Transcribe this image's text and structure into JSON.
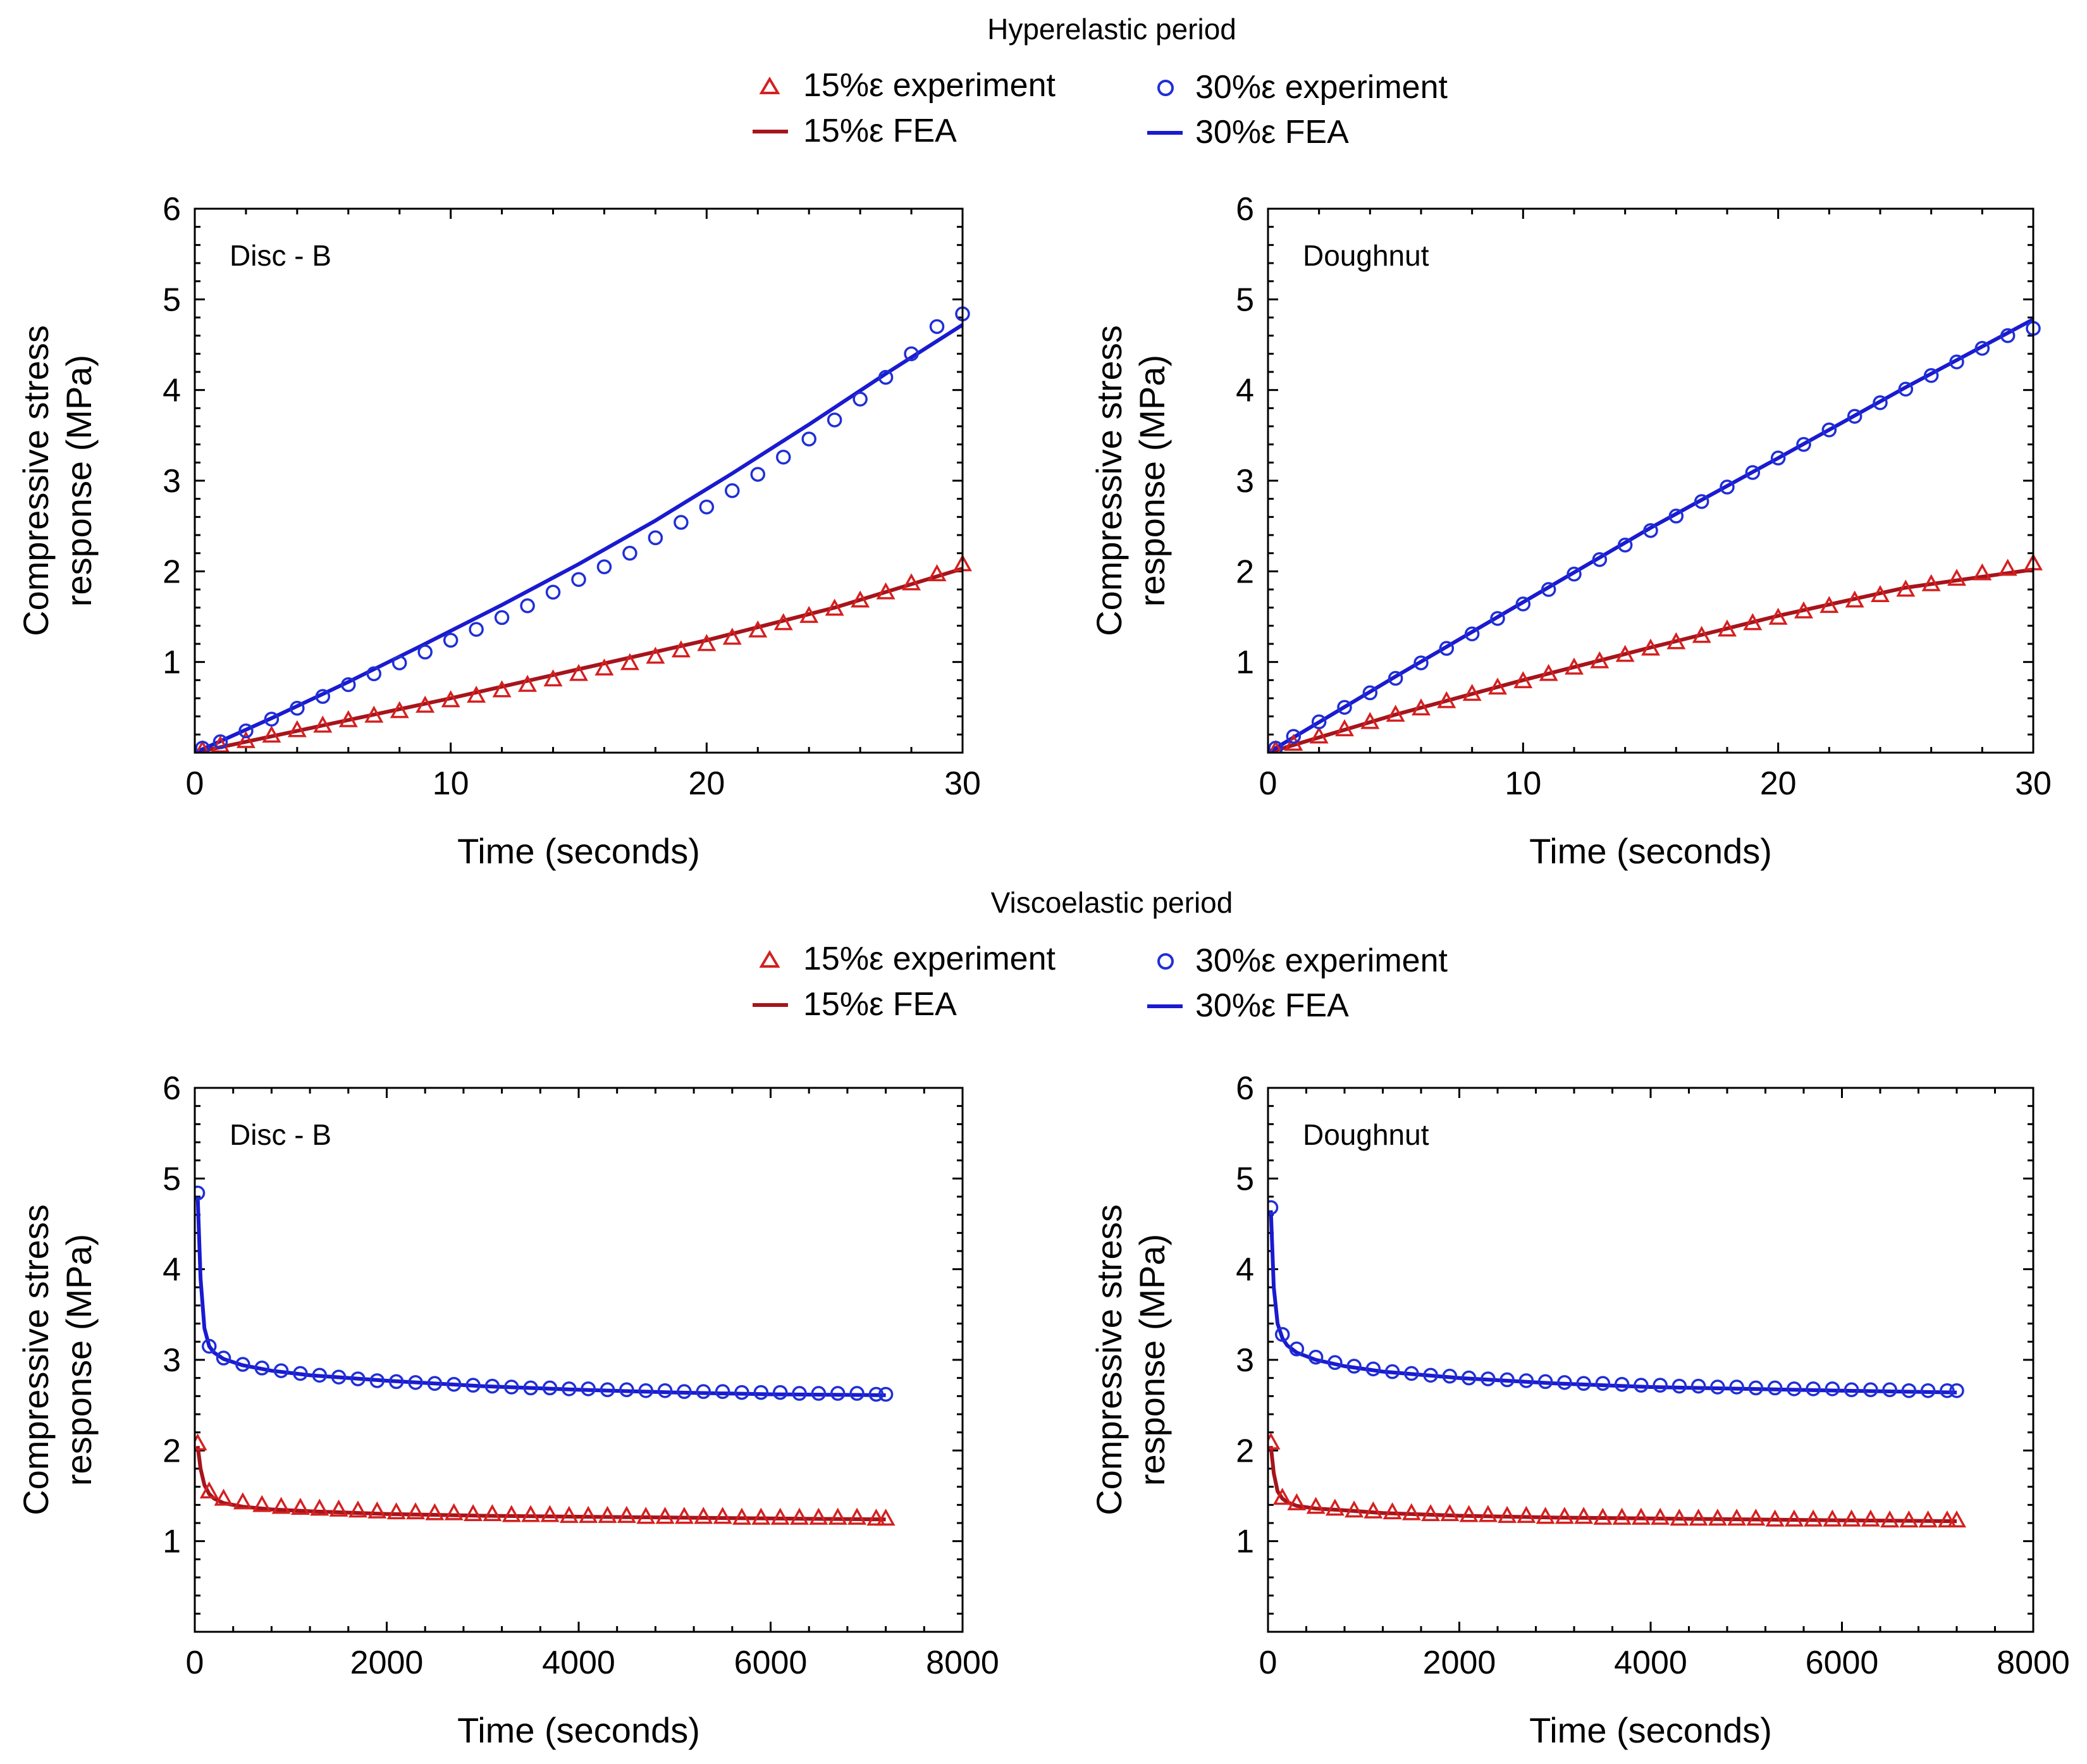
{
  "sections": [
    {
      "title": "Hyperelastic period",
      "legend": [
        {
          "label": "15%ε experiment",
          "marker": "triangle",
          "color": "#d42020"
        },
        {
          "label": "30%ε experiment",
          "marker": "circle",
          "color": "#1f2fd6"
        },
        {
          "label": "15%ε FEA",
          "marker": "line",
          "color": "#a6141c"
        },
        {
          "label": "30%ε FEA",
          "marker": "line",
          "color": "#1a1ad0"
        }
      ]
    },
    {
      "title": "Viscoelastic period",
      "legend": [
        {
          "label": "15%ε experiment",
          "marker": "triangle",
          "color": "#d42020"
        },
        {
          "label": "30%ε experiment",
          "marker": "circle",
          "color": "#1f2fd6"
        },
        {
          "label": "15%ε FEA",
          "marker": "line",
          "color": "#a6141c"
        },
        {
          "label": "30%ε FEA",
          "marker": "line",
          "color": "#1a1ad0"
        }
      ]
    }
  ],
  "chart_data": [
    {
      "type": "scatter+line",
      "section": 0,
      "annotation": "Disc - B",
      "xlabel": "Time (seconds)",
      "ylabel": [
        "Compressive stress",
        "response (MPa)"
      ],
      "xlim": [
        0,
        30
      ],
      "ylim": [
        0,
        6
      ],
      "xticks": [
        0,
        10,
        20,
        30
      ],
      "yticks": [
        1,
        2,
        3,
        4,
        5,
        6
      ],
      "series": [
        {
          "name": "15%ε experiment",
          "kind": "triangle",
          "color": "#d42020",
          "x": [
            0.3,
            1,
            2,
            3,
            4,
            5,
            6,
            7,
            8,
            9,
            10,
            11,
            12,
            13,
            14,
            15,
            16,
            17,
            18,
            19,
            20,
            21,
            22,
            23,
            24,
            25,
            26,
            27,
            28,
            29,
            30
          ],
          "y": [
            0.03,
            0.08,
            0.13,
            0.19,
            0.25,
            0.3,
            0.36,
            0.41,
            0.46,
            0.52,
            0.58,
            0.63,
            0.69,
            0.75,
            0.81,
            0.87,
            0.93,
            0.99,
            1.06,
            1.13,
            1.2,
            1.27,
            1.35,
            1.43,
            1.51,
            1.59,
            1.68,
            1.77,
            1.87,
            1.97,
            2.08
          ]
        },
        {
          "name": "30%ε experiment",
          "kind": "circle",
          "color": "#1f2fd6",
          "x": [
            0.3,
            1,
            2,
            3,
            4,
            5,
            6,
            7,
            8,
            9,
            10,
            11,
            12,
            13,
            14,
            15,
            16,
            17,
            18,
            19,
            20,
            21,
            22,
            23,
            24,
            25,
            26,
            27,
            28,
            29,
            30
          ],
          "y": [
            0.05,
            0.12,
            0.24,
            0.37,
            0.49,
            0.62,
            0.75,
            0.87,
            0.99,
            1.11,
            1.24,
            1.36,
            1.49,
            1.62,
            1.77,
            1.91,
            2.05,
            2.2,
            2.37,
            2.54,
            2.71,
            2.89,
            3.07,
            3.26,
            3.46,
            3.67,
            3.9,
            4.14,
            4.4,
            4.7,
            4.84
          ]
        },
        {
          "name": "15%ε FEA",
          "kind": "line",
          "color": "#a6141c",
          "x": [
            0,
            5,
            10,
            15,
            20,
            25,
            30
          ],
          "y": [
            0,
            0.3,
            0.6,
            0.92,
            1.24,
            1.6,
            2.03
          ]
        },
        {
          "name": "30%ε FEA",
          "kind": "line",
          "color": "#1a1ad0",
          "x": [
            0,
            3,
            6,
            9,
            12,
            15,
            18,
            21,
            24,
            27,
            29,
            30
          ],
          "y": [
            0,
            0.38,
            0.78,
            1.2,
            1.63,
            2.08,
            2.56,
            3.08,
            3.62,
            4.18,
            4.54,
            4.72
          ]
        }
      ]
    },
    {
      "type": "scatter+line",
      "section": 0,
      "annotation": "Doughnut",
      "xlabel": "Time (seconds)",
      "ylabel": [
        "Compressive stress",
        "response (MPa)"
      ],
      "xlim": [
        0,
        30
      ],
      "ylim": [
        0,
        6
      ],
      "xticks": [
        0,
        10,
        20,
        30
      ],
      "yticks": [
        1,
        2,
        3,
        4,
        5,
        6
      ],
      "series": [
        {
          "name": "15%ε experiment",
          "kind": "triangle",
          "color": "#d42020",
          "x": [
            0.3,
            1,
            2,
            3,
            4,
            5,
            6,
            7,
            8,
            9,
            10,
            11,
            12,
            13,
            14,
            15,
            16,
            17,
            18,
            19,
            20,
            21,
            22,
            23,
            24,
            25,
            26,
            27,
            28,
            29,
            30
          ],
          "y": [
            0.03,
            0.1,
            0.18,
            0.26,
            0.34,
            0.42,
            0.49,
            0.57,
            0.65,
            0.72,
            0.79,
            0.87,
            0.94,
            1.01,
            1.08,
            1.15,
            1.22,
            1.29,
            1.36,
            1.43,
            1.49,
            1.56,
            1.62,
            1.68,
            1.74,
            1.8,
            1.86,
            1.92,
            1.98,
            2.03,
            2.09
          ]
        },
        {
          "name": "30%ε experiment",
          "kind": "circle",
          "color": "#1f2fd6",
          "x": [
            0.3,
            1,
            2,
            3,
            4,
            5,
            6,
            7,
            8,
            9,
            10,
            11,
            12,
            13,
            14,
            15,
            16,
            17,
            18,
            19,
            20,
            21,
            22,
            23,
            24,
            25,
            26,
            27,
            28,
            29,
            30
          ],
          "y": [
            0.05,
            0.18,
            0.34,
            0.5,
            0.66,
            0.82,
            0.99,
            1.15,
            1.31,
            1.48,
            1.64,
            1.8,
            1.97,
            2.13,
            2.29,
            2.45,
            2.61,
            2.77,
            2.93,
            3.09,
            3.25,
            3.4,
            3.56,
            3.71,
            3.86,
            4.01,
            4.16,
            4.31,
            4.46,
            4.6,
            4.68
          ]
        },
        {
          "name": "15%ε FEA",
          "kind": "line",
          "color": "#a6141c",
          "x": [
            0,
            5,
            10,
            15,
            20,
            25,
            30
          ],
          "y": [
            0,
            0.42,
            0.8,
            1.16,
            1.51,
            1.82,
            2.02
          ]
        },
        {
          "name": "30%ε FEA",
          "kind": "line",
          "color": "#1a1ad0",
          "x": [
            0,
            5,
            10,
            15,
            20,
            25,
            30
          ],
          "y": [
            0,
            0.84,
            1.66,
            2.48,
            3.25,
            4.03,
            4.78
          ]
        }
      ]
    },
    {
      "type": "scatter+line",
      "section": 1,
      "annotation": "Disc - B",
      "xlabel": "Time (seconds)",
      "ylabel": [
        "Compressive stress",
        "response (MPa)"
      ],
      "xlim": [
        0,
        8000
      ],
      "ylim": [
        0,
        6
      ],
      "xticks": [
        0,
        2000,
        4000,
        6000,
        8000
      ],
      "yticks": [
        1,
        2,
        3,
        4,
        5,
        6
      ],
      "series": [
        {
          "name": "15%ε experiment",
          "kind": "triangle",
          "color": "#d42020",
          "x": [
            30,
            150,
            300,
            500,
            700,
            900,
            1100,
            1300,
            1500,
            1700,
            1900,
            2100,
            2300,
            2500,
            2700,
            2900,
            3100,
            3300,
            3500,
            3700,
            3900,
            4100,
            4300,
            4500,
            4700,
            4900,
            5100,
            5300,
            5500,
            5700,
            5900,
            6100,
            6300,
            6500,
            6700,
            6900,
            7100,
            7200
          ],
          "y": [
            2.08,
            1.55,
            1.47,
            1.43,
            1.4,
            1.38,
            1.37,
            1.36,
            1.35,
            1.34,
            1.33,
            1.32,
            1.32,
            1.31,
            1.31,
            1.3,
            1.3,
            1.29,
            1.29,
            1.29,
            1.28,
            1.28,
            1.28,
            1.28,
            1.27,
            1.27,
            1.27,
            1.27,
            1.27,
            1.26,
            1.26,
            1.26,
            1.26,
            1.26,
            1.26,
            1.26,
            1.25,
            1.25
          ]
        },
        {
          "name": "30%ε experiment",
          "kind": "circle",
          "color": "#1f2fd6",
          "x": [
            30,
            150,
            300,
            500,
            700,
            900,
            1100,
            1300,
            1500,
            1700,
            1900,
            2100,
            2300,
            2500,
            2700,
            2900,
            3100,
            3300,
            3500,
            3700,
            3900,
            4100,
            4300,
            4500,
            4700,
            4900,
            5100,
            5300,
            5500,
            5700,
            5900,
            6100,
            6300,
            6500,
            6700,
            6900,
            7100,
            7200
          ],
          "y": [
            4.84,
            3.15,
            3.02,
            2.95,
            2.91,
            2.88,
            2.85,
            2.83,
            2.81,
            2.79,
            2.77,
            2.76,
            2.75,
            2.74,
            2.73,
            2.72,
            2.71,
            2.7,
            2.69,
            2.69,
            2.68,
            2.68,
            2.67,
            2.67,
            2.66,
            2.66,
            2.65,
            2.65,
            2.65,
            2.64,
            2.64,
            2.64,
            2.63,
            2.63,
            2.63,
            2.63,
            2.62,
            2.62
          ]
        },
        {
          "name": "15%ε FEA",
          "kind": "line",
          "color": "#a6141c",
          "x": [
            30,
            60,
            100,
            150,
            200,
            300,
            500,
            800,
            1200,
            2000,
            3000,
            4000,
            5000,
            6000,
            7200
          ],
          "y": [
            2.05,
            1.8,
            1.62,
            1.52,
            1.47,
            1.42,
            1.38,
            1.35,
            1.33,
            1.3,
            1.28,
            1.27,
            1.26,
            1.25,
            1.24
          ]
        },
        {
          "name": "30%ε FEA",
          "kind": "line",
          "color": "#1a1ad0",
          "x": [
            30,
            60,
            100,
            150,
            200,
            300,
            500,
            800,
            1200,
            2000,
            3000,
            4000,
            5000,
            6000,
            7200
          ],
          "y": [
            4.8,
            3.9,
            3.35,
            3.15,
            3.08,
            3.01,
            2.94,
            2.88,
            2.83,
            2.77,
            2.71,
            2.67,
            2.64,
            2.62,
            2.61
          ]
        }
      ]
    },
    {
      "type": "scatter+line",
      "section": 1,
      "annotation": "Doughnut",
      "xlabel": "Time (seconds)",
      "ylabel": [
        "Compressive stress",
        "response (MPa)"
      ],
      "xlim": [
        0,
        8000
      ],
      "ylim": [
        0,
        6
      ],
      "xticks": [
        0,
        2000,
        4000,
        6000,
        8000
      ],
      "yticks": [
        1,
        2,
        3,
        4,
        5,
        6
      ],
      "series": [
        {
          "name": "15%ε experiment",
          "kind": "triangle",
          "color": "#d42020",
          "x": [
            30,
            150,
            300,
            500,
            700,
            900,
            1100,
            1300,
            1500,
            1700,
            1900,
            2100,
            2300,
            2500,
            2700,
            2900,
            3100,
            3300,
            3500,
            3700,
            3900,
            4100,
            4300,
            4500,
            4700,
            4900,
            5100,
            5300,
            5500,
            5700,
            5900,
            6100,
            6300,
            6500,
            6700,
            6900,
            7100,
            7200
          ],
          "y": [
            2.09,
            1.48,
            1.42,
            1.38,
            1.36,
            1.34,
            1.33,
            1.32,
            1.31,
            1.3,
            1.3,
            1.29,
            1.29,
            1.28,
            1.28,
            1.27,
            1.27,
            1.27,
            1.26,
            1.26,
            1.26,
            1.26,
            1.25,
            1.25,
            1.25,
            1.25,
            1.25,
            1.24,
            1.24,
            1.24,
            1.24,
            1.24,
            1.24,
            1.23,
            1.23,
            1.23,
            1.23,
            1.23
          ]
        },
        {
          "name": "30%ε experiment",
          "kind": "circle",
          "color": "#1f2fd6",
          "x": [
            30,
            150,
            300,
            500,
            700,
            900,
            1100,
            1300,
            1500,
            1700,
            1900,
            2100,
            2300,
            2500,
            2700,
            2900,
            3100,
            3300,
            3500,
            3700,
            3900,
            4100,
            4300,
            4500,
            4700,
            4900,
            5100,
            5300,
            5500,
            5700,
            5900,
            6100,
            6300,
            6500,
            6700,
            6900,
            7100,
            7200
          ],
          "y": [
            4.68,
            3.28,
            3.12,
            3.03,
            2.97,
            2.93,
            2.9,
            2.87,
            2.85,
            2.83,
            2.82,
            2.8,
            2.79,
            2.78,
            2.77,
            2.76,
            2.75,
            2.74,
            2.74,
            2.73,
            2.72,
            2.72,
            2.71,
            2.71,
            2.7,
            2.7,
            2.69,
            2.69,
            2.68,
            2.68,
            2.68,
            2.67,
            2.67,
            2.67,
            2.66,
            2.66,
            2.66,
            2.66
          ]
        },
        {
          "name": "15%ε FEA",
          "kind": "line",
          "color": "#a6141c",
          "x": [
            30,
            60,
            100,
            150,
            200,
            300,
            500,
            800,
            1200,
            2000,
            3000,
            4000,
            5000,
            6000,
            7200
          ],
          "y": [
            2.05,
            1.75,
            1.55,
            1.47,
            1.43,
            1.39,
            1.36,
            1.34,
            1.31,
            1.28,
            1.26,
            1.25,
            1.24,
            1.23,
            1.22
          ]
        },
        {
          "name": "30%ε FEA",
          "kind": "line",
          "color": "#1a1ad0",
          "x": [
            30,
            60,
            100,
            150,
            200,
            300,
            500,
            800,
            1200,
            2000,
            3000,
            4000,
            5000,
            6000,
            7200
          ],
          "y": [
            4.65,
            3.8,
            3.4,
            3.24,
            3.16,
            3.08,
            3.0,
            2.93,
            2.87,
            2.8,
            2.74,
            2.7,
            2.68,
            2.66,
            2.64
          ]
        }
      ]
    }
  ]
}
